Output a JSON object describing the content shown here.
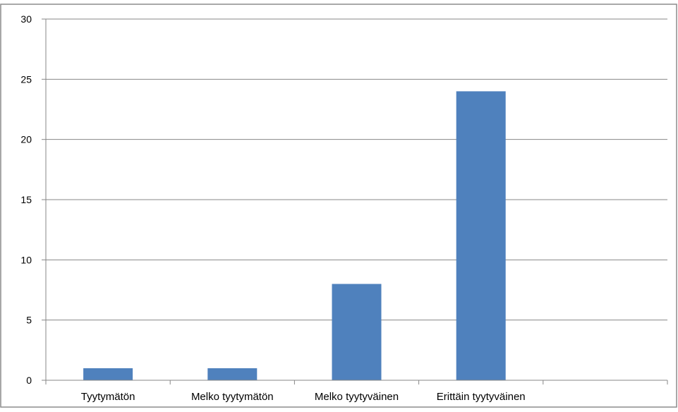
{
  "chart_data": {
    "type": "bar",
    "title": "",
    "xlabel": "",
    "ylabel": "",
    "categories": [
      "Tyytymätön",
      "Melko tyytymätön",
      "Melko tyytyväinen",
      "Erittäin tyytyväinen",
      ""
    ],
    "values": [
      1,
      1,
      8,
      24,
      null
    ],
    "ylim": [
      0,
      30
    ],
    "yticks": [
      0,
      5,
      10,
      15,
      20,
      25,
      30
    ],
    "grid": true,
    "legend": "none",
    "bar_color": "#4F81BD",
    "grid_color": "#878787"
  }
}
